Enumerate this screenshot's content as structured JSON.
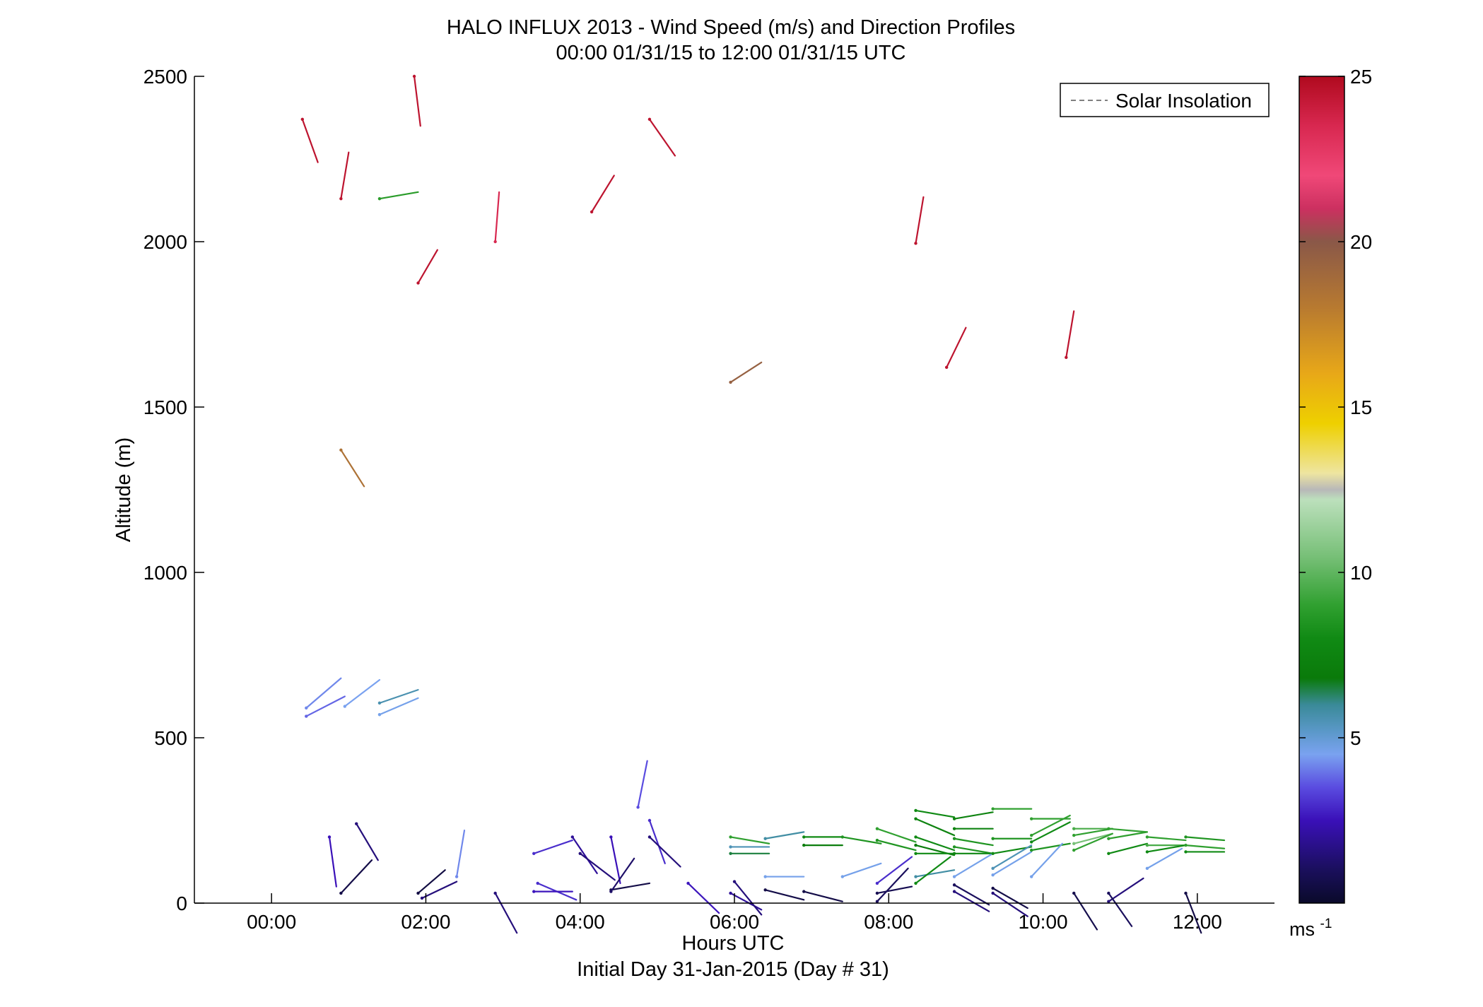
{
  "chart_data": {
    "type": "scatter",
    "title": "HALO INFLUX 2013 - Wind Speed (m/s) and Direction Profiles",
    "subtitle": "00:00 01/31/15 to 12:00 01/31/15  UTC",
    "xlabel": "Hours UTC",
    "xlabel2": "Initial Day 31-Jan-2015 (Day # 31)",
    "ylabel": "Altitude (m)",
    "xlim": [
      -1.0,
      13.0
    ],
    "ylim": [
      0,
      2500
    ],
    "x_ticks": [
      0,
      2,
      4,
      6,
      8,
      10,
      12
    ],
    "x_tick_labels": [
      "00:00",
      "02:00",
      "04:00",
      "06:00",
      "08:00",
      "10:00",
      "12:00"
    ],
    "y_ticks": [
      0,
      500,
      1000,
      1500,
      2000,
      2500
    ],
    "y_tick_labels": [
      "0",
      "500",
      "1000",
      "1500",
      "2000",
      "2500"
    ],
    "grid": false,
    "legend": {
      "placement": "top-right",
      "entries": [
        "Solar Insolation"
      ],
      "line_color": "#808080",
      "line_style": "dashed"
    },
    "colorbar": {
      "range": [
        0,
        25
      ],
      "ticks": [
        5,
        10,
        15,
        20,
        25
      ],
      "tick_labels": [
        "5",
        "10",
        "15",
        "20",
        "25"
      ],
      "unit": "ms",
      "unit_exp": "-1",
      "stops": [
        {
          "v": 0,
          "c": "#0a0a2a"
        },
        {
          "v": 1,
          "c": "#1a0f5c"
        },
        {
          "v": 2.5,
          "c": "#3a10b8"
        },
        {
          "v": 3.5,
          "c": "#5a4ce0"
        },
        {
          "v": 4.5,
          "c": "#7aa2f0"
        },
        {
          "v": 5.2,
          "c": "#5a98c8"
        },
        {
          "v": 6.0,
          "c": "#3a8a98"
        },
        {
          "v": 6.8,
          "c": "#0a7a0a"
        },
        {
          "v": 8.0,
          "c": "#108a14"
        },
        {
          "v": 9.0,
          "c": "#30a030"
        },
        {
          "v": 10.5,
          "c": "#78c078"
        },
        {
          "v": 12.2,
          "c": "#bce0bc"
        },
        {
          "v": 12.5,
          "c": "#b8b8b8"
        },
        {
          "v": 13.0,
          "c": "#eee5a0"
        },
        {
          "v": 14.5,
          "c": "#eed000"
        },
        {
          "v": 16.0,
          "c": "#e8a818"
        },
        {
          "v": 18.0,
          "c": "#b87a30"
        },
        {
          "v": 20.0,
          "c": "#8a5848"
        },
        {
          "v": 21.0,
          "c": "#cc3060"
        },
        {
          "v": 22.0,
          "c": "#f04878"
        },
        {
          "v": 23.5,
          "c": "#d82850"
        },
        {
          "v": 25,
          "c": "#b00a1e"
        }
      ]
    },
    "barbs": [
      {
        "t": 0.4,
        "alt": 2370,
        "u": 0.2,
        "v": -0.13,
        "speed": 24.5
      },
      {
        "t": 1.85,
        "alt": 2500,
        "u": 0.08,
        "v": -0.15,
        "speed": 24.5
      },
      {
        "t": 4.9,
        "alt": 2370,
        "u": 0.33,
        "v": -0.11,
        "speed": 24.5
      },
      {
        "t": 0.9,
        "alt": 2130,
        "u": 0.1,
        "v": 0.14,
        "speed": 24.5
      },
      {
        "t": 1.4,
        "alt": 2130,
        "u": 0.5,
        "v": 0.02,
        "speed": 8.8
      },
      {
        "t": 4.15,
        "alt": 2090,
        "u": 0.29,
        "v": 0.11,
        "speed": 24.5
      },
      {
        "t": 2.9,
        "alt": 2000,
        "u": 0.05,
        "v": 0.15,
        "speed": 23.5
      },
      {
        "t": 8.35,
        "alt": 1995,
        "u": 0.1,
        "v": 0.14,
        "speed": 24.5
      },
      {
        "t": 1.9,
        "alt": 1875,
        "u": 0.25,
        "v": 0.1,
        "speed": 24.5
      },
      {
        "t": 5.95,
        "alt": 1575,
        "u": 0.4,
        "v": 0.06,
        "speed": 19.5
      },
      {
        "t": 8.75,
        "alt": 1620,
        "u": 0.25,
        "v": 0.12,
        "speed": 24.5
      },
      {
        "t": 10.3,
        "alt": 1650,
        "u": 0.1,
        "v": 0.14,
        "speed": 24.5
      },
      {
        "t": 0.9,
        "alt": 1370,
        "u": 0.3,
        "v": -0.11,
        "speed": 18.5
      },
      {
        "t": 0.45,
        "alt": 590,
        "u": 0.45,
        "v": 0.09,
        "speed": 4.2
      },
      {
        "t": 0.45,
        "alt": 565,
        "u": 0.5,
        "v": 0.06,
        "speed": 3.8
      },
      {
        "t": 0.95,
        "alt": 595,
        "u": 0.45,
        "v": 0.08,
        "speed": 4.5
      },
      {
        "t": 1.4,
        "alt": 605,
        "u": 0.5,
        "v": 0.04,
        "speed": 5.6
      },
      {
        "t": 1.4,
        "alt": 570,
        "u": 0.5,
        "v": 0.05,
        "speed": 4.6
      },
      {
        "t": 0.75,
        "alt": 200,
        "u": 0.09,
        "v": -0.15,
        "speed": 2.5
      },
      {
        "t": 1.1,
        "alt": 240,
        "u": 0.28,
        "v": -0.11,
        "speed": 1.5
      },
      {
        "t": 0.9,
        "alt": 30,
        "u": 0.4,
        "v": 0.1,
        "speed": 0.6
      },
      {
        "t": 1.9,
        "alt": 30,
        "u": 0.35,
        "v": 0.07,
        "speed": 0.5
      },
      {
        "t": 1.95,
        "alt": 15,
        "u": 0.45,
        "v": 0.05,
        "speed": 1.5
      },
      {
        "t": 2.4,
        "alt": 80,
        "u": 0.1,
        "v": 0.14,
        "speed": 4.2
      },
      {
        "t": 2.9,
        "alt": 30,
        "u": 0.28,
        "v": -0.12,
        "speed": 1.5
      },
      {
        "t": 3.4,
        "alt": 150,
        "u": 0.5,
        "v": 0.04,
        "speed": 3.0
      },
      {
        "t": 3.45,
        "alt": 60,
        "u": 0.5,
        "v": -0.05,
        "speed": 3.0
      },
      {
        "t": 3.4,
        "alt": 35,
        "u": 0.5,
        "v": 0.0,
        "speed": 2.6
      },
      {
        "t": 3.9,
        "alt": 200,
        "u": 0.32,
        "v": -0.11,
        "speed": 2.0
      },
      {
        "t": 4.0,
        "alt": 150,
        "u": 0.45,
        "v": -0.08,
        "speed": 1.5
      },
      {
        "t": 4.4,
        "alt": 200,
        "u": 0.12,
        "v": -0.14,
        "speed": 2.5
      },
      {
        "t": 4.75,
        "alt": 290,
        "u": 0.12,
        "v": 0.14,
        "speed": 3.5
      },
      {
        "t": 4.9,
        "alt": 250,
        "u": 0.2,
        "v": -0.13,
        "speed": 3.0
      },
      {
        "t": 4.9,
        "alt": 200,
        "u": 0.4,
        "v": -0.09,
        "speed": 1.5
      },
      {
        "t": 4.4,
        "alt": 40,
        "u": 0.5,
        "v": 0.02,
        "speed": 0.6
      },
      {
        "t": 4.4,
        "alt": 35,
        "u": 0.3,
        "v": 0.1,
        "speed": 1.2
      },
      {
        "t": 5.4,
        "alt": 60,
        "u": 0.4,
        "v": -0.09,
        "speed": 2.6
      },
      {
        "t": 5.95,
        "alt": 30,
        "u": 0.4,
        "v": -0.05,
        "speed": 2.0
      },
      {
        "t": 6.0,
        "alt": 65,
        "u": 0.35,
        "v": -0.1,
        "speed": 1.5
      },
      {
        "t": 5.95,
        "alt": 200,
        "u": 0.5,
        "v": -0.02,
        "speed": 9.0
      },
      {
        "t": 5.95,
        "alt": 170,
        "u": 0.5,
        "v": 0.0,
        "speed": 5.5
      },
      {
        "t": 5.95,
        "alt": 150,
        "u": 0.5,
        "v": 0.0,
        "speed": 6.5
      },
      {
        "t": 6.4,
        "alt": 195,
        "u": 0.5,
        "v": 0.02,
        "speed": 5.8
      },
      {
        "t": 6.4,
        "alt": 80,
        "u": 0.5,
        "v": 0.0,
        "speed": 4.6
      },
      {
        "t": 6.4,
        "alt": 40,
        "u": 0.5,
        "v": -0.03,
        "speed": 0.6
      },
      {
        "t": 6.9,
        "alt": 200,
        "u": 0.5,
        "v": 0.0,
        "speed": 8.0
      },
      {
        "t": 6.9,
        "alt": 175,
        "u": 0.5,
        "v": 0.0,
        "speed": 7.0
      },
      {
        "t": 6.9,
        "alt": 35,
        "u": 0.5,
        "v": -0.03,
        "speed": 0.6
      },
      {
        "t": 7.4,
        "alt": 200,
        "u": 0.5,
        "v": -0.02,
        "speed": 8.5
      },
      {
        "t": 7.4,
        "alt": 80,
        "u": 0.5,
        "v": 0.04,
        "speed": 4.6
      },
      {
        "t": 7.85,
        "alt": 225,
        "u": 0.5,
        "v": -0.04,
        "speed": 9.0
      },
      {
        "t": 7.85,
        "alt": 190,
        "u": 0.5,
        "v": -0.03,
        "speed": 8.5
      },
      {
        "t": 7.85,
        "alt": 60,
        "u": 0.45,
        "v": 0.08,
        "speed": 3.0
      },
      {
        "t": 7.85,
        "alt": 30,
        "u": 0.45,
        "v": 0.02,
        "speed": 0.8
      },
      {
        "t": 7.85,
        "alt": 5,
        "u": 0.4,
        "v": 0.1,
        "speed": 1.0
      },
      {
        "t": 8.35,
        "alt": 280,
        "u": 0.5,
        "v": -0.02,
        "speed": 8.0
      },
      {
        "t": 8.35,
        "alt": 255,
        "u": 0.5,
        "v": -0.05,
        "speed": 7.5
      },
      {
        "t": 8.35,
        "alt": 200,
        "u": 0.5,
        "v": -0.04,
        "speed": 8.0
      },
      {
        "t": 8.35,
        "alt": 175,
        "u": 0.5,
        "v": -0.03,
        "speed": 7.0
      },
      {
        "t": 8.35,
        "alt": 150,
        "u": 0.5,
        "v": 0.0,
        "speed": 8.0
      },
      {
        "t": 8.35,
        "alt": 80,
        "u": 0.5,
        "v": 0.02,
        "speed": 5.8
      },
      {
        "t": 8.35,
        "alt": 60,
        "u": 0.45,
        "v": 0.08,
        "speed": 8.0
      },
      {
        "t": 8.85,
        "alt": 255,
        "u": 0.5,
        "v": 0.02,
        "speed": 7.5
      },
      {
        "t": 8.85,
        "alt": 225,
        "u": 0.5,
        "v": 0.0,
        "speed": 7.5
      },
      {
        "t": 8.85,
        "alt": 195,
        "u": 0.5,
        "v": -0.02,
        "speed": 8.5
      },
      {
        "t": 8.85,
        "alt": 170,
        "u": 0.5,
        "v": -0.02,
        "speed": 8.5
      },
      {
        "t": 8.85,
        "alt": 150,
        "u": 0.5,
        "v": 0.0,
        "speed": 7.8
      },
      {
        "t": 8.85,
        "alt": 80,
        "u": 0.5,
        "v": 0.07,
        "speed": 4.6
      },
      {
        "t": 8.85,
        "alt": 55,
        "u": 0.45,
        "v": -0.06,
        "speed": 1.0
      },
      {
        "t": 8.85,
        "alt": 35,
        "u": 0.45,
        "v": -0.06,
        "speed": 1.5
      },
      {
        "t": 9.35,
        "alt": 285,
        "u": 0.5,
        "v": 0.0,
        "speed": 9.0
      },
      {
        "t": 9.35,
        "alt": 195,
        "u": 0.5,
        "v": 0.0,
        "speed": 8.5
      },
      {
        "t": 9.35,
        "alt": 150,
        "u": 0.5,
        "v": 0.02,
        "speed": 8.0
      },
      {
        "t": 9.35,
        "alt": 105,
        "u": 0.5,
        "v": 0.07,
        "speed": 5.5
      },
      {
        "t": 9.35,
        "alt": 85,
        "u": 0.5,
        "v": 0.07,
        "speed": 4.6
      },
      {
        "t": 9.35,
        "alt": 45,
        "u": 0.45,
        "v": -0.06,
        "speed": 0.6
      },
      {
        "t": 9.35,
        "alt": 30,
        "u": 0.45,
        "v": -0.07,
        "speed": 1.5
      },
      {
        "t": 9.85,
        "alt": 255,
        "u": 0.5,
        "v": 0.0,
        "speed": 9.0
      },
      {
        "t": 9.85,
        "alt": 205,
        "u": 0.5,
        "v": 0.06,
        "speed": 9.0
      },
      {
        "t": 9.85,
        "alt": 185,
        "u": 0.5,
        "v": 0.06,
        "speed": 8.0
      },
      {
        "t": 9.85,
        "alt": 160,
        "u": 0.5,
        "v": 0.02,
        "speed": 8.5
      },
      {
        "t": 9.85,
        "alt": 80,
        "u": 0.4,
        "v": 0.1,
        "speed": 4.6
      },
      {
        "t": 10.4,
        "alt": 225,
        "u": 0.5,
        "v": 0.0,
        "speed": 9.5
      },
      {
        "t": 10.4,
        "alt": 205,
        "u": 0.5,
        "v": 0.02,
        "speed": 9.0
      },
      {
        "t": 10.4,
        "alt": 180,
        "u": 0.5,
        "v": 0.03,
        "speed": 10.5
      },
      {
        "t": 10.4,
        "alt": 160,
        "u": 0.5,
        "v": 0.05,
        "speed": 9.0
      },
      {
        "t": 10.4,
        "alt": 30,
        "u": 0.3,
        "v": -0.11,
        "speed": 0.7
      },
      {
        "t": 10.85,
        "alt": 225,
        "u": 0.5,
        "v": -0.01,
        "speed": 9.0
      },
      {
        "t": 10.85,
        "alt": 195,
        "u": 0.5,
        "v": 0.02,
        "speed": 9.0
      },
      {
        "t": 10.85,
        "alt": 150,
        "u": 0.5,
        "v": 0.03,
        "speed": 8.0
      },
      {
        "t": 10.85,
        "alt": 5,
        "u": 0.45,
        "v": 0.07,
        "speed": 1.5
      },
      {
        "t": 10.85,
        "alt": 30,
        "u": 0.3,
        "v": -0.1,
        "speed": 1.0
      },
      {
        "t": 11.35,
        "alt": 200,
        "u": 0.5,
        "v": -0.01,
        "speed": 9.0
      },
      {
        "t": 11.35,
        "alt": 175,
        "u": 0.5,
        "v": 0.0,
        "speed": 9.5
      },
      {
        "t": 11.35,
        "alt": 155,
        "u": 0.5,
        "v": 0.02,
        "speed": 8.0
      },
      {
        "t": 11.35,
        "alt": 105,
        "u": 0.45,
        "v": 0.06,
        "speed": 4.6
      },
      {
        "t": 11.85,
        "alt": 200,
        "u": 0.5,
        "v": -0.01,
        "speed": 8.5
      },
      {
        "t": 11.85,
        "alt": 175,
        "u": 0.5,
        "v": -0.01,
        "speed": 9.0
      },
      {
        "t": 11.85,
        "alt": 155,
        "u": 0.5,
        "v": 0.0,
        "speed": 8.0
      },
      {
        "t": 11.85,
        "alt": 30,
        "u": 0.2,
        "v": -0.12,
        "speed": 0.6
      }
    ]
  }
}
